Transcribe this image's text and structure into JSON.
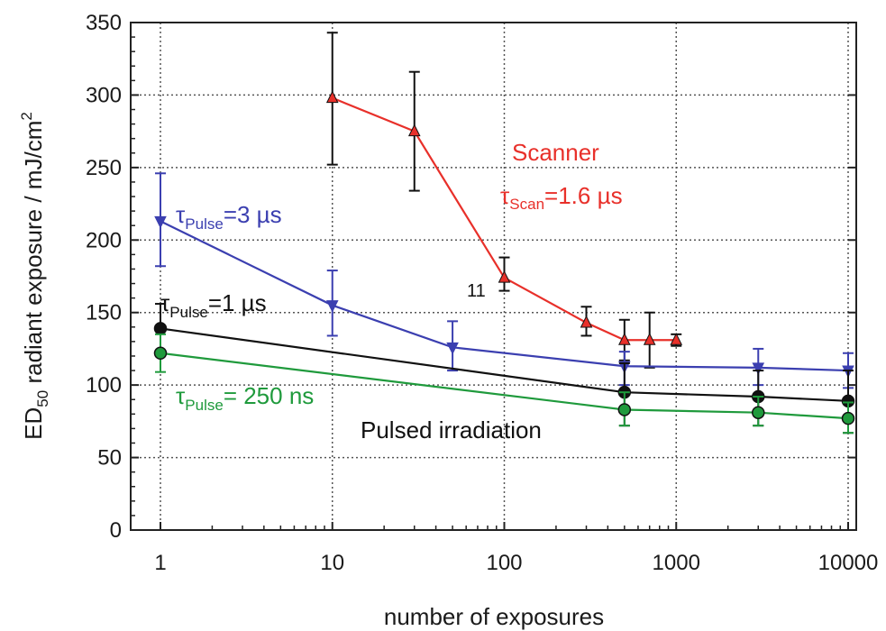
{
  "chart_data": {
    "type": "line",
    "xscale": "log",
    "xlim": [
      1,
      10000
    ],
    "ylim": [
      0,
      350
    ],
    "grid": true,
    "grid_style": "dotted",
    "xlabel": "number of exposures",
    "ylabel": {
      "prefix": "ED",
      "prefix_sub": "50",
      "main": " radiant exposure  / mJ/cm",
      "sup": "2"
    },
    "x_ticks": [
      1,
      10,
      100,
      1000,
      10000
    ],
    "x_tick_labels": [
      "1",
      "10",
      "100",
      "1000",
      "10000"
    ],
    "y_ticks": [
      0,
      50,
      100,
      150,
      200,
      250,
      300,
      350
    ],
    "y_tick_labels": [
      "0",
      "50",
      "100",
      "150",
      "200",
      "250",
      "300",
      "350"
    ],
    "series": [
      {
        "color": "#e8302a",
        "marker": "triangle-up",
        "points": [
          {
            "x": 10,
            "y": 298,
            "err_lo": 252,
            "err_hi": 343
          },
          {
            "x": 30,
            "y": 275,
            "err_lo": 234,
            "err_hi": 316
          },
          {
            "x": 100,
            "y": 174,
            "err_lo": 165,
            "err_hi": 188
          },
          {
            "x": 300,
            "y": 143,
            "err_lo": 134,
            "err_hi": 154
          },
          {
            "x": 500,
            "y": 131,
            "err_lo": 117,
            "err_hi": 145
          },
          {
            "x": 700,
            "y": 131,
            "err_lo": 112,
            "err_hi": 150
          },
          {
            "x": 1000,
            "y": 131,
            "err_lo": 127,
            "err_hi": 135
          }
        ]
      },
      {
        "color": "#3b3fb0",
        "marker": "triangle-down",
        "points": [
          {
            "x": 1,
            "y": 213,
            "err_lo": 182,
            "err_hi": 246
          },
          {
            "x": 10,
            "y": 155,
            "err_lo": 134,
            "err_hi": 179
          },
          {
            "x": 50,
            "y": 126,
            "err_lo": 110,
            "err_hi": 144
          },
          {
            "x": 500,
            "y": 113,
            "err_lo": 100,
            "err_hi": 123
          },
          {
            "x": 3000,
            "y": 112,
            "err_lo": 100,
            "err_hi": 125
          },
          {
            "x": 10000,
            "y": 110,
            "err_lo": 98,
            "err_hi": 122
          }
        ]
      },
      {
        "color": "#111111",
        "marker": "circle",
        "points": [
          {
            "x": 1,
            "y": 139,
            "err_lo": 124,
            "err_hi": 156
          },
          {
            "x": 500,
            "y": 95,
            "err_lo": 72,
            "err_hi": 115
          },
          {
            "x": 3000,
            "y": 92,
            "err_lo": 72,
            "err_hi": 110
          },
          {
            "x": 10000,
            "y": 89,
            "err_lo": 67,
            "err_hi": 110
          }
        ]
      },
      {
        "color": "#1f9a3c",
        "marker": "circle",
        "points": [
          {
            "x": 1,
            "y": 122,
            "err_lo": 109,
            "err_hi": 135
          },
          {
            "x": 500,
            "y": 83,
            "err_lo": 72,
            "err_hi": 95
          },
          {
            "x": 3000,
            "y": 81,
            "err_lo": 72,
            "err_hi": 92
          },
          {
            "x": 10000,
            "y": 77,
            "err_lo": 67,
            "err_hi": 88
          }
        ]
      }
    ],
    "annotations": {
      "scanner": {
        "text": "Scanner",
        "color": "#e8302a"
      },
      "tau_scan": {
        "tau": "τ",
        "sub": "Scan",
        "rest": "=1.6 µs",
        "color": "#e8302a"
      },
      "tau_pulse_3": {
        "tau": "τ",
        "sub": "Pulse",
        "rest": "=3 µs",
        "color": "#3b3fb0"
      },
      "tau_pulse_1": {
        "tau": "τ",
        "sub": "Pulse",
        "rest": "=1 µs",
        "color": "#111111"
      },
      "tau_pulse_250": {
        "tau": "τ",
        "sub": "Pulse",
        "rest": "= 250 ns",
        "color": "#1f9a3c"
      },
      "pulsed": {
        "text": "Pulsed irradiation",
        "color": "#111111"
      },
      "point_11": {
        "text": "11",
        "color": "#111111"
      }
    }
  }
}
